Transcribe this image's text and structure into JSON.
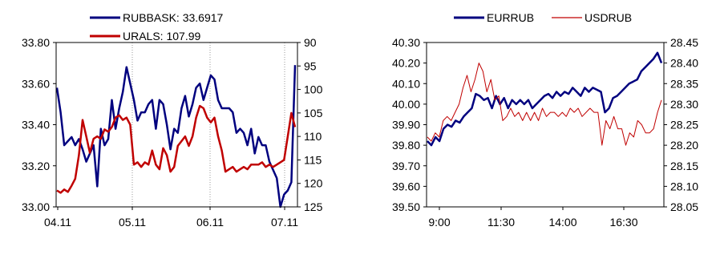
{
  "chart_data": [
    {
      "type": "line",
      "x_labels": [
        "04.11",
        "05.11",
        "06.11",
        "07.11"
      ],
      "ylim_left": [
        33.0,
        33.8
      ],
      "yticks_left": [
        "33.80",
        "33.60",
        "33.40",
        "33.20",
        "33.00"
      ],
      "ylim_right": [
        90,
        125
      ],
      "y_right_inverted": true,
      "yticks_right": [
        "90",
        "95",
        "100",
        "105",
        "110",
        "115",
        "120",
        "125"
      ],
      "grid": "vertical dotted",
      "legend_position": "top",
      "series": [
        {
          "name": "RUBBASK: 33.6917",
          "axis": "left",
          "color": "#00007f",
          "values": [
            33.58,
            33.46,
            33.3,
            33.32,
            33.34,
            33.3,
            33.33,
            33.28,
            33.22,
            33.26,
            33.3,
            33.1,
            33.38,
            33.3,
            33.33,
            33.52,
            33.38,
            33.48,
            33.56,
            33.68,
            33.6,
            33.52,
            33.42,
            33.46,
            33.46,
            33.5,
            33.52,
            33.38,
            33.52,
            33.5,
            33.4,
            33.28,
            33.38,
            33.36,
            33.48,
            33.54,
            33.44,
            33.5,
            33.58,
            33.6,
            33.52,
            33.58,
            33.64,
            33.62,
            33.52,
            33.48,
            33.48,
            33.48,
            33.46,
            33.36,
            33.38,
            33.36,
            33.3,
            33.38,
            33.26,
            33.34,
            33.3,
            33.3,
            33.22,
            33.18,
            33.14,
            33.0,
            33.06,
            33.08,
            33.12,
            33.69
          ]
        },
        {
          "name": "URALS: 107.99",
          "axis": "right",
          "color": "#c00000",
          "values": [
            121.5,
            122.0,
            121.3,
            121.8,
            120.5,
            119.0,
            114.0,
            106.5,
            110.0,
            113.5,
            110.5,
            110.0,
            110.5,
            108.5,
            109.0,
            108.0,
            106.0,
            105.5,
            106.5,
            106.0,
            107.5,
            116.0,
            115.5,
            116.5,
            115.5,
            116.0,
            113.0,
            116.0,
            117.0,
            112.5,
            114.0,
            117.5,
            116.5,
            112.0,
            111.0,
            110.0,
            112.0,
            110.0,
            106.0,
            103.5,
            104.0,
            106.0,
            107.0,
            106.0,
            110.0,
            113.0,
            117.5,
            117.0,
            116.5,
            117.5,
            117.0,
            116.5,
            117.0,
            116.0,
            116.0,
            116.0,
            115.5,
            116.5,
            116.0,
            116.5,
            116.0,
            115.5,
            115.0,
            110.0,
            105.0,
            108.0
          ]
        }
      ]
    },
    {
      "type": "line",
      "x_labels": [
        "9:00",
        "11:30",
        "14:00",
        "16:30"
      ],
      "ylim_left": [
        39.5,
        40.3
      ],
      "yticks_left": [
        "40.30",
        "40.20",
        "40.10",
        "40.00",
        "39.90",
        "39.80",
        "39.70",
        "39.60",
        "39.50"
      ],
      "ylim_right": [
        28.05,
        28.45
      ],
      "yticks_right": [
        "28.45",
        "28.40",
        "28.35",
        "28.30",
        "28.25",
        "28.20",
        "28.15",
        "28.10",
        "28.05"
      ],
      "legend_position": "top",
      "series": [
        {
          "name": "EURRUB",
          "axis": "left",
          "color": "#00007f",
          "values": [
            39.82,
            39.8,
            39.84,
            39.82,
            39.88,
            39.9,
            39.89,
            39.92,
            39.91,
            39.94,
            39.96,
            39.98,
            40.05,
            40.04,
            40.02,
            40.03,
            39.98,
            40.04,
            40.0,
            40.03,
            39.98,
            40.02,
            40.0,
            40.02,
            40.0,
            40.02,
            39.98,
            40.0,
            40.02,
            40.04,
            40.05,
            40.03,
            40.06,
            40.04,
            40.06,
            40.05,
            40.08,
            40.06,
            40.04,
            40.08,
            40.06,
            40.08,
            40.07,
            40.06,
            39.96,
            39.98,
            40.03,
            40.04,
            40.06,
            40.08,
            40.1,
            40.11,
            40.12,
            40.16,
            40.18,
            40.2,
            40.22,
            40.25,
            40.2
          ]
        },
        {
          "name": "USDRUB",
          "axis": "right",
          "color": "#c00000",
          "values": [
            28.22,
            28.21,
            28.23,
            28.22,
            28.26,
            28.27,
            28.26,
            28.28,
            28.3,
            28.34,
            28.37,
            28.33,
            28.36,
            28.4,
            28.38,
            28.33,
            28.36,
            28.31,
            28.32,
            28.26,
            28.27,
            28.29,
            28.27,
            28.28,
            28.26,
            28.28,
            28.26,
            28.28,
            28.26,
            28.29,
            28.27,
            28.28,
            28.28,
            28.27,
            28.28,
            28.27,
            28.29,
            28.28,
            28.29,
            28.27,
            28.28,
            28.29,
            28.28,
            28.28,
            28.2,
            28.26,
            28.24,
            28.27,
            28.24,
            28.24,
            28.2,
            28.23,
            28.22,
            28.26,
            28.25,
            28.23,
            28.23,
            28.24,
            28.28,
            28.31
          ]
        }
      ]
    }
  ]
}
